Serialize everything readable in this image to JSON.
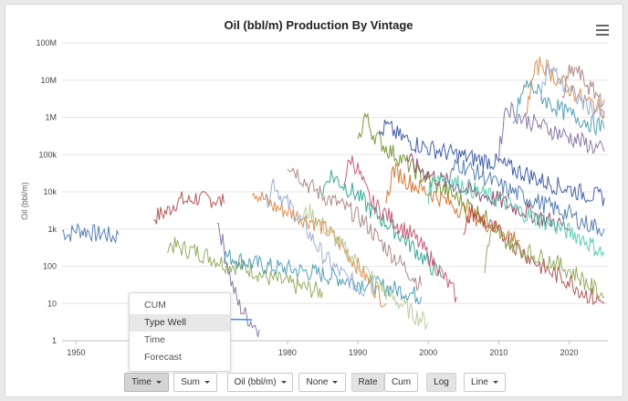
{
  "chart_data": {
    "type": "line",
    "title": "Oil (bbl/m) Production By Vintage",
    "ylabel": "Oil (bbl/m)",
    "xlabel": "",
    "yscale": "log",
    "ylim": [
      1,
      100000000
    ],
    "xlim": [
      1948,
      2025.5
    ],
    "y_ticks": [
      {
        "value": 1,
        "label": "1"
      },
      {
        "value": 10,
        "label": "10"
      },
      {
        "value": 100,
        "label": "100"
      },
      {
        "value": 1000,
        "label": "1k"
      },
      {
        "value": 10000,
        "label": "10k"
      },
      {
        "value": 100000,
        "label": "100k"
      },
      {
        "value": 1000000,
        "label": "1M"
      },
      {
        "value": 10000000,
        "label": "10M"
      },
      {
        "value": 100000000,
        "label": "100M"
      }
    ],
    "x_ticks": [
      {
        "value": 1950,
        "label": "1950"
      },
      {
        "value": 1980,
        "label": "1980"
      },
      {
        "value": 1990,
        "label": "1990"
      },
      {
        "value": 2000,
        "label": "2000"
      },
      {
        "value": 2010,
        "label": "2010"
      },
      {
        "value": 2020,
        "label": "2020"
      }
    ],
    "grid": "horizontal",
    "series_colors": [
      "#4572a7",
      "#aa4643",
      "#89a54e",
      "#80699b",
      "#3d96ae",
      "#db843d",
      "#92a8cd",
      "#a47d7c",
      "#b5ca92",
      "#1f9e89",
      "#c24e6e",
      "#6b8e23",
      "#2f4f9f",
      "#d2691e",
      "#8b3a62",
      "#48c9b0"
    ],
    "series": [
      {
        "x": [
          1948,
          1949,
          1950,
          1951,
          1952,
          1953,
          1954,
          1955,
          1956
        ],
        "y": [
          900,
          700,
          1000,
          900,
          850,
          700,
          800,
          600,
          700
        ]
      },
      {
        "x": [
          1961,
          1962,
          1963,
          1964,
          1965,
          1966,
          1967,
          1968,
          1969,
          1970,
          1971
        ],
        "y": [
          2000,
          2500,
          3000,
          5000,
          6000,
          5500,
          7000,
          6000,
          6500,
          6000,
          5000
        ]
      },
      {
        "x": [
          1963,
          1965,
          1967,
          1969,
          1971,
          1973,
          1975,
          1977,
          1979,
          1981,
          1983,
          1985
        ],
        "y": [
          400,
          300,
          250,
          180,
          120,
          100,
          80,
          50,
          40,
          30,
          25,
          20
        ]
      },
      {
        "x": [
          1970,
          1971,
          1972,
          1973,
          1974,
          1975,
          1976
        ],
        "y": [
          2000,
          300,
          40,
          10,
          5,
          3,
          2
        ]
      },
      {
        "x": [
          1971,
          1973,
          1975,
          1977,
          1979,
          1981,
          1983,
          1985,
          1987,
          1989,
          1991,
          1993,
          1995,
          1997,
          1999
        ],
        "y": [
          200,
          150,
          120,
          100,
          90,
          80,
          70,
          60,
          50,
          40,
          35,
          30,
          25,
          20,
          15
        ]
      },
      {
        "x": [
          1975,
          1976,
          1978,
          1980,
          1982,
          1984,
          1986,
          1988,
          1990,
          1992,
          1994
        ],
        "y": [
          12000,
          8000,
          4000,
          3000,
          2000,
          1500,
          800,
          300,
          100,
          30,
          10
        ]
      },
      {
        "x": [
          1977,
          1978,
          1979,
          1981,
          1983,
          1985,
          1987,
          1989,
          1991
        ],
        "y": [
          5000,
          20000,
          8000,
          3000,
          800,
          200,
          80,
          40,
          20
        ]
      },
      {
        "x": [
          1980,
          1981,
          1983,
          1985,
          1987,
          1989,
          1991,
          1993,
          1995,
          1997,
          1999
        ],
        "y": [
          60000,
          40000,
          15000,
          8000,
          5000,
          3000,
          1500,
          500,
          200,
          80,
          30
        ]
      },
      {
        "x": [
          1982,
          1983,
          1984,
          1986,
          1988,
          1990,
          1992,
          1994,
          1996,
          1998,
          2000
        ],
        "y": [
          2000,
          3000,
          2000,
          800,
          300,
          120,
          50,
          20,
          10,
          5,
          3
        ]
      },
      {
        "x": [
          1985,
          1986,
          1988,
          1990,
          1992,
          1994,
          1996,
          1998,
          2000,
          2002
        ],
        "y": [
          10000,
          30000,
          15000,
          8000,
          3000,
          1500,
          700,
          300,
          120,
          50
        ]
      },
      {
        "x": [
          1988,
          1989,
          1990,
          1991,
          1992,
          1994,
          1996,
          1998,
          2000,
          2002,
          2004
        ],
        "y": [
          20000,
          80000,
          40000,
          12000,
          5000,
          2500,
          1200,
          600,
          200,
          60,
          15
        ]
      },
      {
        "x": [
          1990,
          1991,
          1992,
          1994,
          1996,
          1998,
          2000,
          2002,
          2004,
          2006,
          2008,
          2010
        ],
        "y": [
          200000,
          1200000,
          400000,
          150000,
          80000,
          40000,
          20000,
          12000,
          7000,
          4000,
          2000,
          1200
        ]
      },
      {
        "x": [
          1993,
          1994,
          1996,
          1998,
          2000,
          2002,
          2004,
          2006,
          2008,
          2010,
          2012,
          2014,
          2016,
          2018,
          2020,
          2022,
          2025
        ],
        "y": [
          300000,
          600000,
          300000,
          200000,
          150000,
          120000,
          100000,
          80000,
          70000,
          60000,
          40000,
          30000,
          20000,
          15000,
          12000,
          9000,
          7000
        ]
      },
      {
        "x": [
          1994,
          1995,
          1997,
          1999,
          2001,
          2003,
          2005,
          2007,
          2009,
          2011,
          2013
        ],
        "y": [
          5000,
          40000,
          20000,
          12000,
          8000,
          5000,
          3000,
          2000,
          1200,
          800,
          500
        ]
      },
      {
        "x": [
          1997,
          1998,
          2000,
          2002,
          2004,
          2006,
          2008,
          2010,
          2012,
          2014,
          2016,
          2018,
          2020
        ],
        "y": [
          80000,
          50000,
          30000,
          20000,
          15000,
          10000,
          8000,
          6000,
          4000,
          3000,
          2000,
          1500,
          1000
        ]
      },
      {
        "x": [
          2000,
          2001,
          2003,
          2005,
          2007,
          2009,
          2011,
          2013,
          2015,
          2017,
          2019,
          2021,
          2023,
          2025
        ],
        "y": [
          8000,
          30000,
          20000,
          15000,
          10000,
          7000,
          5000,
          3000,
          2000,
          1500,
          1000,
          700,
          400,
          200
        ]
      },
      {
        "x": [
          2003,
          2004,
          2006,
          2008,
          2010,
          2012,
          2014,
          2016,
          2018,
          2020,
          2022,
          2025
        ],
        "y": [
          20000,
          60000,
          40000,
          25000,
          15000,
          10000,
          7000,
          5000,
          3500,
          2500,
          1500,
          1000
        ]
      },
      {
        "x": [
          2005,
          2006,
          2008,
          2010,
          2012,
          2014,
          2016,
          2018,
          2020,
          2022,
          2025
        ],
        "y": [
          500,
          3000,
          1500,
          800,
          400,
          200,
          100,
          60,
          40,
          20,
          10
        ]
      },
      {
        "x": [
          2008,
          2009,
          2011,
          2013,
          2015,
          2017,
          2019,
          2021,
          2023,
          2025
        ],
        "y": [
          100,
          1000,
          500,
          300,
          200,
          150,
          100,
          60,
          30,
          15
        ]
      },
      {
        "x": [
          2010,
          2011,
          2012,
          2013,
          2015,
          2017,
          2019,
          2021,
          2023,
          2025
        ],
        "y": [
          100000,
          2000000,
          1500000,
          1000000,
          700000,
          500000,
          350000,
          250000,
          180000,
          120000
        ]
      },
      {
        "x": [
          2012,
          2013,
          2014,
          2015,
          2016,
          2017,
          2019,
          2021,
          2023,
          2025
        ],
        "y": [
          500000,
          3000000,
          8000000,
          6000000,
          4000000,
          2500000,
          1500000,
          1000000,
          700000,
          500000
        ]
      },
      {
        "x": [
          2014,
          2015,
          2016,
          2017,
          2018,
          2020,
          2022,
          2024,
          2025
        ],
        "y": [
          2000000,
          15000000,
          30000000,
          20000000,
          12000000,
          6000000,
          3000000,
          2000000,
          1500000
        ]
      },
      {
        "x": [
          2016,
          2017,
          2018,
          2019,
          2020,
          2022,
          2024,
          2025
        ],
        "y": [
          5000000,
          20000000,
          15000000,
          8000000,
          5000000,
          2500000,
          1500000,
          1000000
        ]
      },
      {
        "x": [
          2019,
          2020,
          2021,
          2022,
          2023,
          2024,
          2025
        ],
        "y": [
          3000000,
          15000000,
          20000000,
          10000000,
          6000000,
          4000000,
          3000000
        ]
      }
    ]
  },
  "toolbar": {
    "time_label": "Time",
    "sum_label": "Sum",
    "unit_label": "Oil (bbl/m)",
    "none_label": "None",
    "rate_label": "Rate",
    "cum_label": "Cum",
    "log_label": "Log",
    "line_label": "Line"
  },
  "dropdown": {
    "items": [
      {
        "label": "CUM"
      },
      {
        "label": "Type Well"
      },
      {
        "label": "Time"
      },
      {
        "label": "Forecast"
      }
    ]
  },
  "annotation": {
    "arrow_color": "#3a8ee6"
  }
}
